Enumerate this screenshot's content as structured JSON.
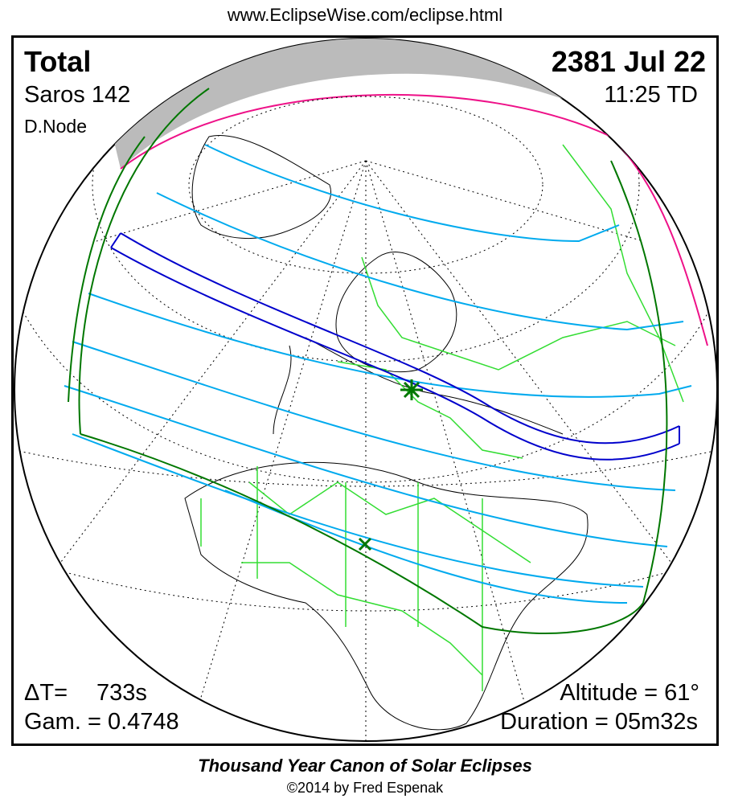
{
  "header": {
    "url": "www.EclipseWise.com/eclipse.html"
  },
  "eclipse": {
    "type": "Total",
    "date": "2381 Jul 22",
    "saros": "Saros 142",
    "time": "11:25 TD",
    "node": "D.Node",
    "delta_t_label": "ΔT=",
    "delta_t_value": "733s",
    "gamma": "Gam. = 0.4748",
    "altitude": "Altitude = 61°",
    "duration": "Duration = 05m32s"
  },
  "footer": {
    "title": "Thousand Year Canon of Solar Eclipses",
    "copyright": "©2014 by Fred Espenak"
  },
  "colors": {
    "central_path": "#0000cc",
    "penumbral_lines": "#00aaee",
    "penumbral_limits": "#007700",
    "borders": "#33dd33",
    "sunrise_sunset": "#ee1188",
    "night": "#bbbbbb"
  }
}
